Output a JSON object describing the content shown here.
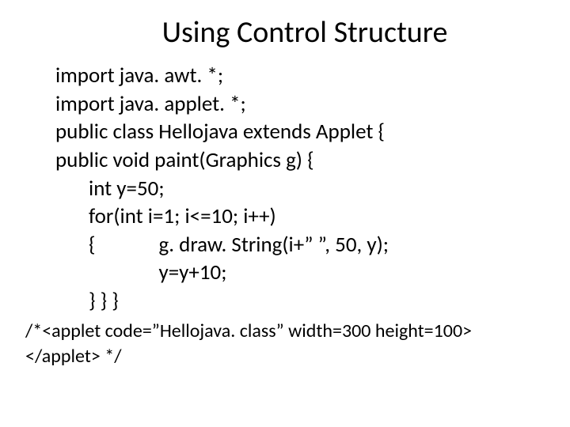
{
  "title": "Using Control Structure",
  "code": {
    "l1": "import java. awt. *;",
    "l2": "import java. applet. *;",
    "l3": "public class Hellojava extends Applet {",
    "l4": "public void paint(Graphics g) {",
    "l5": "int y=50;",
    "l6": "for(int i=1; i<=10; i++)",
    "l7a": "{",
    "l7b": "g. draw. String(i+” ”, 50, y);",
    "l8": "y=y+10;",
    "l9": "} } }"
  },
  "footer": {
    "f1": "/*<applet code=”Hellojava. class” width=300 height=100>",
    "f2": "</applet> */"
  },
  "colors": {
    "background": "#ffffff",
    "text": "#000000"
  },
  "fontsize": {
    "title": 38,
    "code": 27,
    "footer": 24
  }
}
